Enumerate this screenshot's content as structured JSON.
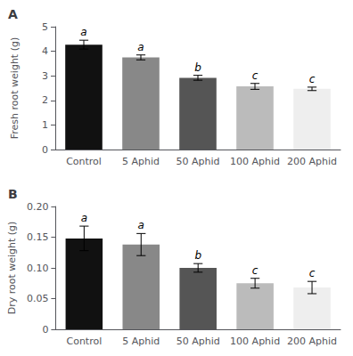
{
  "chart_data": [
    {
      "type": "bar",
      "title": "A",
      "categories": [
        "Control",
        "5 Aphid",
        "50 Aphid",
        "100 Aphid",
        "200 Aphid"
      ],
      "values": [
        4.27,
        3.75,
        2.92,
        2.57,
        2.47
      ],
      "errors": [
        0.18,
        0.1,
        0.1,
        0.12,
        0.07
      ],
      "annotations": [
        "a",
        "a",
        "b",
        "c",
        "c"
      ],
      "y_label": "Fresh root weight (g)",
      "ylim": [
        0,
        5
      ],
      "yticks": [
        0,
        1,
        2,
        3,
        4,
        5
      ],
      "colors": [
        "#111111",
        "#888888",
        "#555555",
        "#bbbbbb",
        "#eeeeee"
      ],
      "grid": false
    },
    {
      "type": "bar",
      "title": "B",
      "categories": [
        "Control",
        "5 Aphid",
        "50 Aphid",
        "100 Aphid",
        "200 Aphid"
      ],
      "values": [
        0.148,
        0.138,
        0.1,
        0.075,
        0.068
      ],
      "errors": [
        0.02,
        0.018,
        0.007,
        0.008,
        0.01
      ],
      "annotations": [
        "a",
        "a",
        "b",
        "c",
        "c"
      ],
      "y_label": "Dry root weight (g)",
      "ylim": [
        0,
        0.2
      ],
      "yticks": [
        0,
        0.05,
        {
          "value": 0.1,
          "label": "0.10"
        },
        0.15,
        {
          "value": 0.2,
          "label": "0.20"
        }
      ],
      "colors": [
        "#111111",
        "#888888",
        "#555555",
        "#bbbbbb",
        "#eeeeee"
      ],
      "grid": false
    }
  ]
}
